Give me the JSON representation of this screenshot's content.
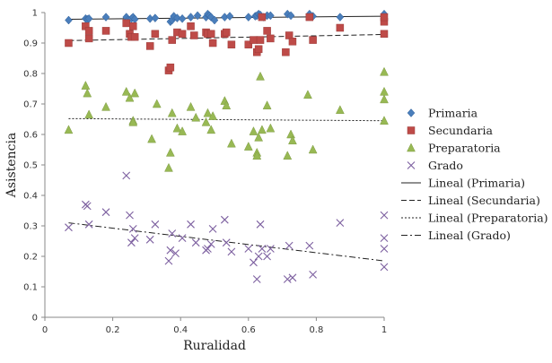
{
  "chart_data": {
    "type": "scatter",
    "xlabel": "Ruralidad",
    "ylabel": "Asistencia",
    "xlim": [
      0,
      1
    ],
    "ylim": [
      0,
      1
    ],
    "x_ticks": [
      "0",
      "0.2",
      "0.4",
      "0.6",
      "0.8",
      "1"
    ],
    "y_ticks": [
      "0",
      "0.1",
      "0.2",
      "0.3",
      "0.4",
      "0.5",
      "0.6",
      "0.7",
      "0.8",
      "0.9",
      "1"
    ],
    "grid": false,
    "legend_position": "right",
    "series": [
      {
        "name": "Primaria",
        "marker": "diamond",
        "color": "#4a7ebb",
        "points": [
          [
            0.07,
            0.975
          ],
          [
            0.12,
            0.98
          ],
          [
            0.125,
            0.978
          ],
          [
            0.13,
            0.98
          ],
          [
            0.18,
            0.985
          ],
          [
            0.24,
            0.985
          ],
          [
            0.245,
            0.975
          ],
          [
            0.255,
            0.98
          ],
          [
            0.26,
            0.985
          ],
          [
            0.265,
            0.978
          ],
          [
            0.31,
            0.98
          ],
          [
            0.325,
            0.982
          ],
          [
            0.37,
            0.97
          ],
          [
            0.375,
            0.975
          ],
          [
            0.38,
            0.988
          ],
          [
            0.39,
            0.982
          ],
          [
            0.405,
            0.98
          ],
          [
            0.43,
            0.985
          ],
          [
            0.45,
            0.99
          ],
          [
            0.475,
            0.985
          ],
          [
            0.48,
            0.995
          ],
          [
            0.485,
            0.99
          ],
          [
            0.49,
            0.985
          ],
          [
            0.5,
            0.975
          ],
          [
            0.53,
            0.985
          ],
          [
            0.545,
            0.988
          ],
          [
            0.6,
            0.985
          ],
          [
            0.62,
            0.988
          ],
          [
            0.625,
            0.99
          ],
          [
            0.63,
            0.995
          ],
          [
            0.635,
            0.992
          ],
          [
            0.645,
            0.985
          ],
          [
            0.655,
            0.99
          ],
          [
            0.665,
            0.99
          ],
          [
            0.715,
            0.995
          ],
          [
            0.725,
            0.99
          ],
          [
            0.78,
            0.995
          ],
          [
            0.79,
            0.988
          ],
          [
            0.87,
            0.985
          ],
          [
            1.0,
            0.995
          ]
        ],
        "trend": [
          0.978,
          0.988
        ]
      },
      {
        "name": "Secundaria",
        "marker": "square",
        "color": "#be4b48",
        "points": [
          [
            0.07,
            0.9
          ],
          [
            0.12,
            0.955
          ],
          [
            0.13,
            0.915
          ],
          [
            0.13,
            0.94
          ],
          [
            0.18,
            0.94
          ],
          [
            0.24,
            0.965
          ],
          [
            0.25,
            0.93
          ],
          [
            0.255,
            0.92
          ],
          [
            0.26,
            0.955
          ],
          [
            0.265,
            0.92
          ],
          [
            0.31,
            0.89
          ],
          [
            0.325,
            0.93
          ],
          [
            0.365,
            0.81
          ],
          [
            0.37,
            0.82
          ],
          [
            0.375,
            0.91
          ],
          [
            0.39,
            0.935
          ],
          [
            0.405,
            0.93
          ],
          [
            0.43,
            0.955
          ],
          [
            0.44,
            0.925
          ],
          [
            0.475,
            0.935
          ],
          [
            0.48,
            0.93
          ],
          [
            0.49,
            0.93
          ],
          [
            0.495,
            0.9
          ],
          [
            0.53,
            0.93
          ],
          [
            0.535,
            0.935
          ],
          [
            0.55,
            0.895
          ],
          [
            0.6,
            0.895
          ],
          [
            0.615,
            0.91
          ],
          [
            0.625,
            0.87
          ],
          [
            0.63,
            0.88
          ],
          [
            0.635,
            0.91
          ],
          [
            0.64,
            0.985
          ],
          [
            0.655,
            0.94
          ],
          [
            0.665,
            0.915
          ],
          [
            0.71,
            0.87
          ],
          [
            0.72,
            0.925
          ],
          [
            0.73,
            0.905
          ],
          [
            0.78,
            0.985
          ],
          [
            0.79,
            0.91
          ],
          [
            0.87,
            0.95
          ],
          [
            1.0,
            0.97
          ],
          [
            1.0,
            0.93
          ],
          [
            1.0,
            0.985
          ]
        ],
        "trend": [
          0.908,
          0.928
        ]
      },
      {
        "name": "Preparatoria",
        "marker": "triangle",
        "color": "#98b954",
        "points": [
          [
            0.07,
            0.615
          ],
          [
            0.12,
            0.76
          ],
          [
            0.125,
            0.735
          ],
          [
            0.13,
            0.665
          ],
          [
            0.18,
            0.69
          ],
          [
            0.24,
            0.74
          ],
          [
            0.25,
            0.72
          ],
          [
            0.26,
            0.645
          ],
          [
            0.265,
            0.735
          ],
          [
            0.26,
            0.64
          ],
          [
            0.315,
            0.585
          ],
          [
            0.33,
            0.7
          ],
          [
            0.365,
            0.49
          ],
          [
            0.37,
            0.54
          ],
          [
            0.375,
            0.67
          ],
          [
            0.39,
            0.62
          ],
          [
            0.405,
            0.61
          ],
          [
            0.43,
            0.69
          ],
          [
            0.445,
            0.655
          ],
          [
            0.475,
            0.64
          ],
          [
            0.48,
            0.67
          ],
          [
            0.49,
            0.615
          ],
          [
            0.495,
            0.66
          ],
          [
            0.53,
            0.71
          ],
          [
            0.535,
            0.695
          ],
          [
            0.55,
            0.57
          ],
          [
            0.6,
            0.56
          ],
          [
            0.615,
            0.61
          ],
          [
            0.625,
            0.54
          ],
          [
            0.625,
            0.53
          ],
          [
            0.63,
            0.59
          ],
          [
            0.635,
            0.79
          ],
          [
            0.64,
            0.615
          ],
          [
            0.655,
            0.695
          ],
          [
            0.665,
            0.62
          ],
          [
            0.715,
            0.53
          ],
          [
            0.725,
            0.6
          ],
          [
            0.73,
            0.58
          ],
          [
            0.775,
            0.73
          ],
          [
            0.79,
            0.55
          ],
          [
            0.87,
            0.68
          ],
          [
            1.0,
            0.805
          ],
          [
            1.0,
            0.74
          ],
          [
            1.0,
            0.715
          ],
          [
            1.0,
            0.645
          ]
        ],
        "trend": [
          0.652,
          0.645
        ]
      },
      {
        "name": "Grado",
        "marker": "x",
        "color": "#7d60a0",
        "points": [
          [
            0.07,
            0.295
          ],
          [
            0.12,
            0.37
          ],
          [
            0.125,
            0.365
          ],
          [
            0.13,
            0.305
          ],
          [
            0.18,
            0.345
          ],
          [
            0.24,
            0.465
          ],
          [
            0.25,
            0.335
          ],
          [
            0.255,
            0.245
          ],
          [
            0.26,
            0.29
          ],
          [
            0.265,
            0.26
          ],
          [
            0.31,
            0.255
          ],
          [
            0.325,
            0.305
          ],
          [
            0.365,
            0.185
          ],
          [
            0.37,
            0.22
          ],
          [
            0.375,
            0.275
          ],
          [
            0.385,
            0.21
          ],
          [
            0.405,
            0.26
          ],
          [
            0.43,
            0.305
          ],
          [
            0.445,
            0.245
          ],
          [
            0.475,
            0.22
          ],
          [
            0.48,
            0.225
          ],
          [
            0.49,
            0.24
          ],
          [
            0.495,
            0.29
          ],
          [
            0.53,
            0.32
          ],
          [
            0.535,
            0.245
          ],
          [
            0.55,
            0.215
          ],
          [
            0.6,
            0.225
          ],
          [
            0.615,
            0.18
          ],
          [
            0.625,
            0.125
          ],
          [
            0.63,
            0.2
          ],
          [
            0.635,
            0.305
          ],
          [
            0.64,
            0.225
          ],
          [
            0.655,
            0.2
          ],
          [
            0.665,
            0.225
          ],
          [
            0.715,
            0.125
          ],
          [
            0.72,
            0.235
          ],
          [
            0.73,
            0.13
          ],
          [
            0.78,
            0.235
          ],
          [
            0.79,
            0.14
          ],
          [
            0.87,
            0.31
          ],
          [
            1.0,
            0.335
          ],
          [
            1.0,
            0.26
          ],
          [
            1.0,
            0.225
          ],
          [
            1.0,
            0.165
          ]
        ],
        "trend": [
          0.31,
          0.185
        ]
      }
    ],
    "legend": [
      {
        "label": "Primaria",
        "kind": "diamond",
        "color": "#4a7ebb"
      },
      {
        "label": "Secundaria",
        "kind": "square",
        "color": "#be4b48"
      },
      {
        "label": "Preparatoria",
        "kind": "triangle",
        "color": "#98b954"
      },
      {
        "label": "Grado",
        "kind": "x",
        "color": "#7d60a0"
      },
      {
        "label": "Lineal (Primaria)",
        "kind": "line",
        "color": "#222222",
        "dash": "none"
      },
      {
        "label": "Lineal (Secundaria)",
        "kind": "line",
        "color": "#222222",
        "dash": "6,3"
      },
      {
        "label": "Lineal (Preparatoria)",
        "kind": "line",
        "color": "#222222",
        "dash": "2,2"
      },
      {
        "label": "Lineal (Grado)",
        "kind": "line",
        "color": "#222222",
        "dash": "7,3,2,3"
      }
    ]
  }
}
